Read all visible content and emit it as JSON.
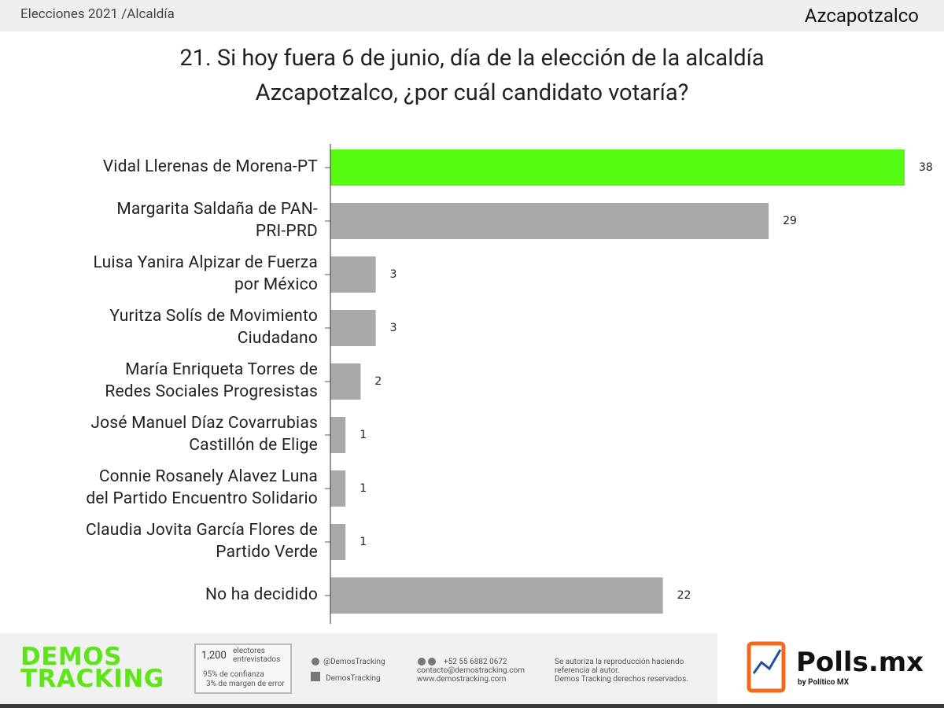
{
  "header": {
    "section": "Elecciones 2021 /Alcaldía",
    "place": "Azcapotzalco"
  },
  "chart_data": {
    "type": "bar",
    "orientation": "horizontal",
    "title": "21. Si hoy fuera 6 de junio, día de la elección de la alcaldía\nAzcapotzalco, ¿por cuál candidato votaría?",
    "categories": [
      "Vidal Llerenas de Morena-PT",
      "Margarita Saldaña de PAN-\nPRI-PRD",
      "Luisa Yanira Alpizar de Fuerza\npor México",
      "Yuritza Solís de Movimiento\nCiudadano",
      "María Enriqueta Torres de\nRedes Sociales Progresistas",
      "José Manuel Díaz Covarrubias\nCastillón de Elige",
      "Connie Rosanely Alavez Luna\ndel Partido Encuentro Solidario",
      "Claudia Jovita García Flores de\nPartido Verde",
      "No ha decidido"
    ],
    "values": [
      38,
      29,
      3,
      3,
      2,
      1,
      1,
      1,
      22
    ],
    "colors": [
      "#55fb10",
      "#a9a9a9",
      "#a9a9a9",
      "#a9a9a9",
      "#a9a9a9",
      "#a9a9a9",
      "#a9a9a9",
      "#a9a9a9",
      "#a9a9a9"
    ]
  },
  "footer": {
    "logo_top": "DEMOS",
    "logo_bottom": "TRACKING",
    "sample_size": "1,200",
    "sample_label": "electores\nentrevistados",
    "confidence": "95% de confianza",
    "margin": "3% de margen de error",
    "twitter": "@DemosTracking",
    "facebook": "DemosTracking",
    "phone": "+52 55 6882 0672",
    "email": "contacto@demostracking.com",
    "web": "www.demostracking.com",
    "rights_1": "Se autoriza la reproducción haciendo\nreferencia al autor.",
    "rights_2": "Demos Tracking derechos reservados.",
    "brand": "Polls.mx",
    "brand_by": "by Político MX"
  }
}
